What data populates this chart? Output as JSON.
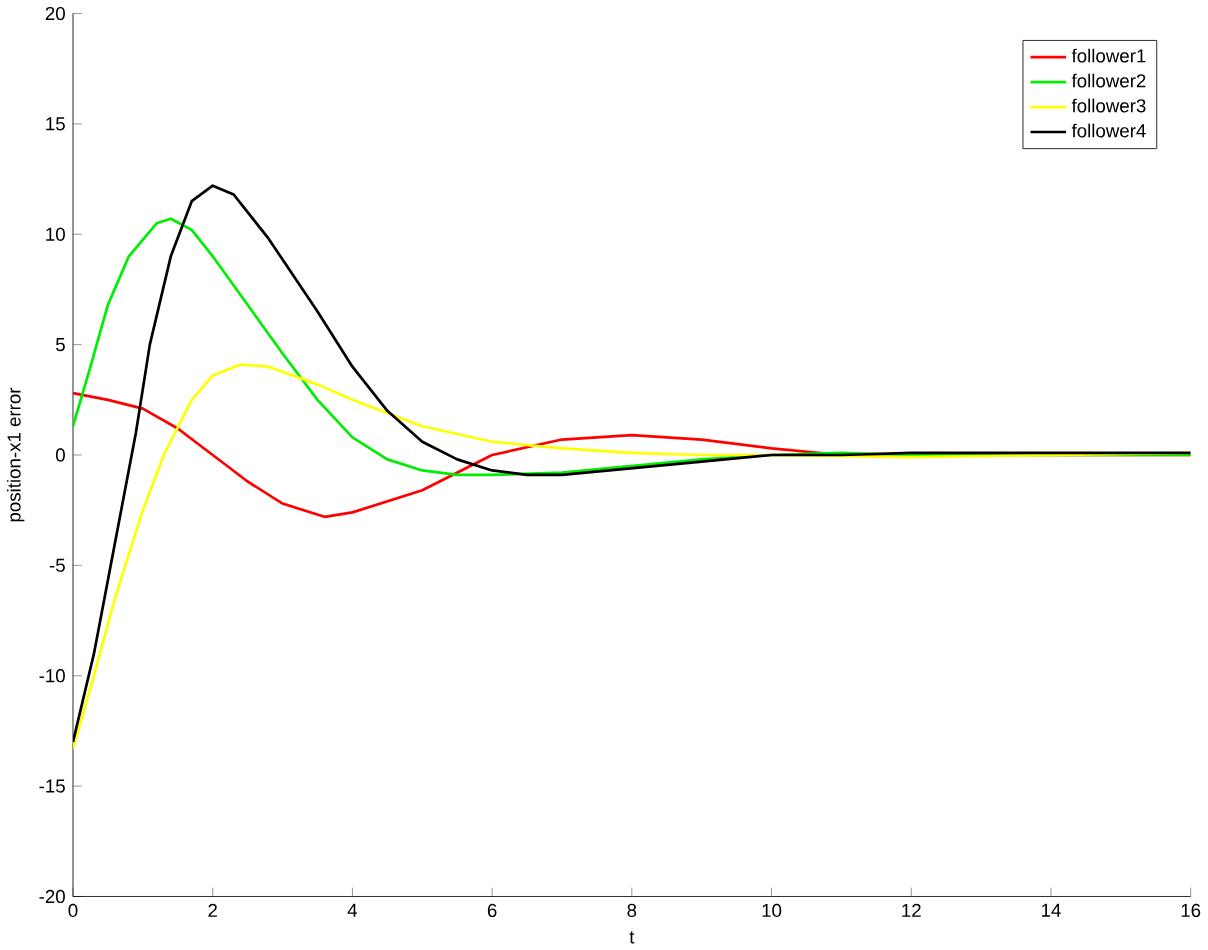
{
  "chart_data": {
    "type": "line",
    "xlabel": "t",
    "ylabel": "position-x1 error",
    "xlim": [
      0,
      16
    ],
    "ylim": [
      -20,
      20
    ],
    "xticks": [
      0,
      2,
      4,
      6,
      8,
      10,
      12,
      14,
      16
    ],
    "yticks": [
      -20,
      -15,
      -10,
      -5,
      0,
      5,
      10,
      15,
      20
    ],
    "grid": false,
    "legend": "top right",
    "marker": "none",
    "line_style": "solid",
    "series": [
      {
        "name": "follower1",
        "color": "#ff0000",
        "x": [
          0,
          0.5,
          1,
          1.5,
          2,
          2.5,
          3,
          3.6,
          4,
          5,
          6,
          7,
          8,
          9,
          10,
          11,
          12,
          13,
          14,
          16
        ],
        "values": [
          2.8,
          2.5,
          2.1,
          1.2,
          0,
          -1.2,
          -2.2,
          -2.8,
          -2.6,
          -1.6,
          0,
          0.7,
          0.9,
          0.7,
          0.3,
          0,
          null,
          null,
          0,
          0
        ]
      },
      {
        "name": "follower2",
        "color": "#00ee00",
        "x": [
          0,
          0.25,
          0.5,
          0.8,
          1.2,
          1.4,
          1.7,
          2,
          2.5,
          3,
          3.5,
          4,
          4.5,
          5,
          5.5,
          6,
          7,
          8,
          9,
          10,
          11,
          12,
          16
        ],
        "values": [
          1.3,
          4,
          6.8,
          9,
          10.5,
          10.7,
          10.2,
          9,
          6.8,
          4.6,
          2.5,
          0.8,
          -0.2,
          -0.7,
          -0.9,
          -0.9,
          -0.8,
          -0.5,
          -0.2,
          0,
          0.1,
          0,
          0
        ]
      },
      {
        "name": "follower3",
        "color": "#ffff00",
        "x": [
          0,
          0.3,
          0.6,
          1,
          1.3,
          1.7,
          2,
          2.4,
          2.8,
          3.5,
          4,
          5,
          6,
          7,
          8,
          9,
          10,
          12,
          16
        ],
        "values": [
          -13.3,
          -10,
          -6.5,
          -2.5,
          0,
          2.5,
          3.6,
          4.1,
          4,
          3.2,
          2.5,
          1.3,
          0.6,
          0.3,
          0.1,
          0,
          0,
          -0.1,
          0.1
        ]
      },
      {
        "name": "follower4",
        "color": "#000000",
        "x": [
          0,
          0.3,
          0.6,
          0.9,
          1.1,
          1.4,
          1.7,
          2,
          2.3,
          2.8,
          3.5,
          4,
          4.5,
          5,
          5.5,
          6,
          6.5,
          7,
          8,
          9,
          10,
          11,
          12,
          16
        ],
        "values": [
          -13,
          -9,
          -4,
          1,
          5,
          9,
          11.5,
          12.2,
          11.8,
          9.8,
          6.5,
          4,
          2,
          0.6,
          -0.2,
          -0.7,
          -0.9,
          -0.9,
          -0.6,
          -0.3,
          0,
          0,
          0.1,
          0.1
        ]
      }
    ]
  }
}
